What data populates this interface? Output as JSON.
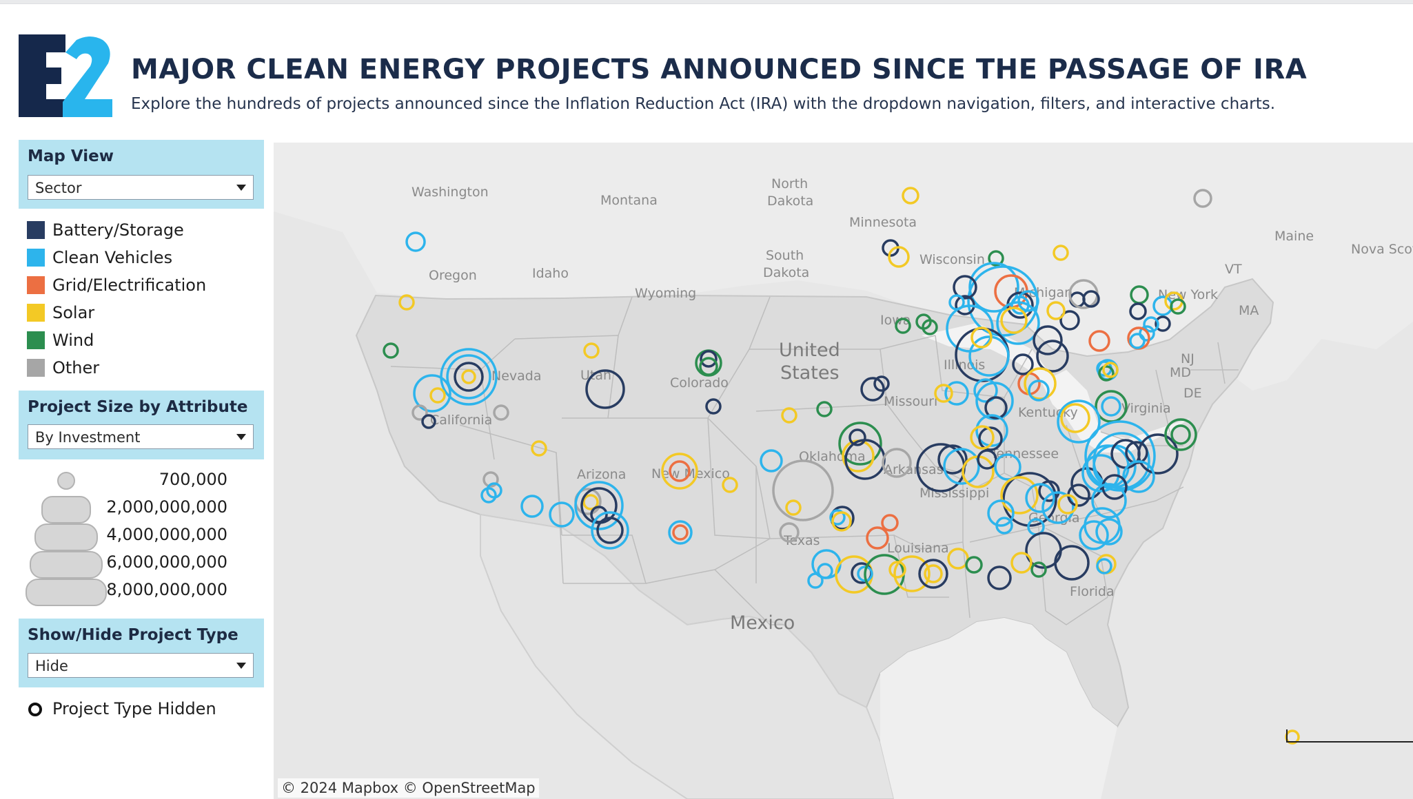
{
  "header": {
    "logo_text": "E2",
    "title": "MAJOR CLEAN ENERGY PROJECTS ANNOUNCED SINCE THE PASSAGE OF IRA",
    "subtitle": "Explore the hundreds of projects announced since the Inflation Reduction Act (IRA) with the dropdown navigation, filters, and interactive charts."
  },
  "colors": {
    "battery": "#283c61",
    "vehicles": "#2db4ec",
    "grid": "#ec6f42",
    "solar": "#f3c925",
    "wind": "#2c8e4f",
    "other": "#a6a6a6",
    "panel": "#b5e3f1",
    "logo_dark": "#15284b",
    "logo_light": "#29b5ed"
  },
  "controls": {
    "map_view": {
      "label": "Map View",
      "value": "Sector"
    },
    "project_size": {
      "label": "Project Size by Attribute",
      "value": "By Investment"
    },
    "show_hide": {
      "label": "Show/Hide Project Type",
      "value": "Hide"
    }
  },
  "legend": [
    {
      "label": "Battery/Storage",
      "color": "#283c61"
    },
    {
      "label": "Clean Vehicles",
      "color": "#2db4ec"
    },
    {
      "label": "Grid/Electrification",
      "color": "#ec6f42"
    },
    {
      "label": "Solar",
      "color": "#f3c925"
    },
    {
      "label": "Wind",
      "color": "#2c8e4f"
    },
    {
      "label": "Other",
      "color": "#a6a6a6"
    }
  ],
  "size_legend": [
    "700,000",
    "2,000,000,000",
    "4,000,000,000",
    "6,000,000,000",
    "8,000,000,000"
  ],
  "hidden_label": "Project Type Hidden",
  "map": {
    "attribution": "© 2024 Mapbox  © OpenStreetMap",
    "country_label_line1": "United",
    "country_label_line2": "States",
    "mexico_label": "Mexico",
    "region_labels": [
      "Washington",
      "Montana",
      "North",
      "Dakota",
      "Minnesota",
      "South",
      "Dakota",
      "Oregon",
      "Idaho",
      "Wyoming",
      "Wisconsin",
      "Michigan",
      "New York",
      "Maine",
      "Nova Scot",
      "VT",
      "MA",
      "Iowa",
      "Illinois",
      "Nevada",
      "Utah",
      "Colorado",
      "California",
      "Missouri",
      "Kentucky",
      "Virginia",
      "DE",
      "Oklahoma",
      "Arkansas",
      "Tennessee",
      "Arizona",
      "New Mexico",
      "Mississippi",
      "Georgia",
      "Texas",
      "Louisiana",
      "Florida",
      "MD",
      "NJ"
    ]
  }
}
